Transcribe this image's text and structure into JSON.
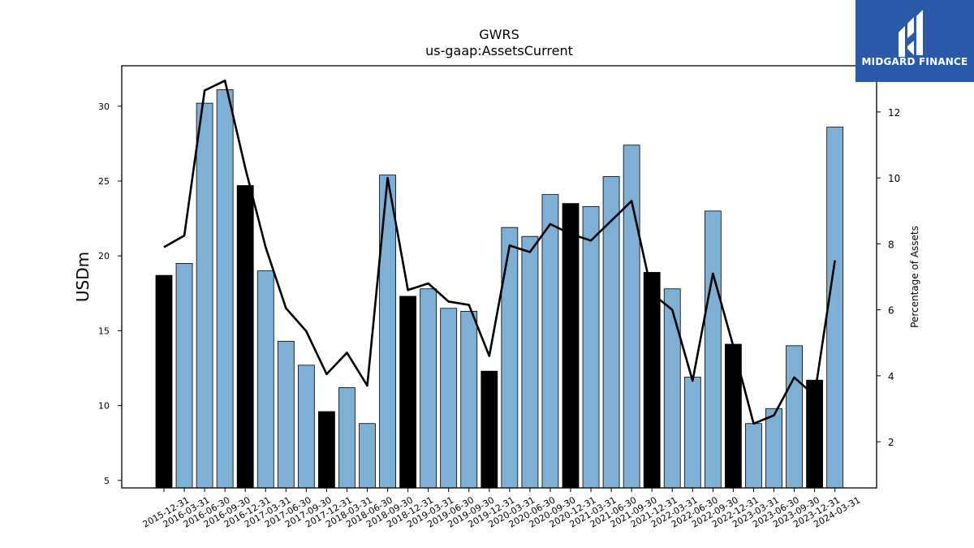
{
  "chart_data": {
    "type": "bar",
    "title": "GWRS",
    "subtitle": "us-gaap:AssetsCurrent",
    "ylabel": "USDm",
    "ylabel_right": "Percentage of Assets",
    "ylim": [
      4.5,
      32.7
    ],
    "ylim_right": [
      0.6,
      13.4
    ],
    "yticks": [
      5,
      10,
      15,
      20,
      25,
      30
    ],
    "yticks_right": [
      2,
      4,
      6,
      8,
      10,
      12
    ],
    "grid": false,
    "categories": [
      "2015-12-31",
      "2016-03-31",
      "2016-06-30",
      "2016-09-30",
      "2016-12-31",
      "2017-03-31",
      "2017-06-30",
      "2017-09-30",
      "2017-12-31",
      "2018-03-31",
      "2018-06-30",
      "2018-09-30",
      "2018-12-31",
      "2019-03-31",
      "2019-06-30",
      "2019-09-30",
      "2019-12-31",
      "2020-03-31",
      "2020-06-30",
      "2020-09-30",
      "2020-12-31",
      "2021-03-31",
      "2021-06-30",
      "2021-09-30",
      "2021-12-31",
      "2022-03-31",
      "2022-06-30",
      "2022-09-30",
      "2022-12-31",
      "2023-03-31",
      "2023-06-30",
      "2023-09-30",
      "2023-12-31",
      "2024-03-31"
    ],
    "series": [
      {
        "type": "bar",
        "axis": "left",
        "values": [
          18.7,
          19.5,
          30.2,
          31.1,
          24.7,
          19.0,
          14.3,
          12.7,
          9.6,
          11.2,
          8.8,
          25.4,
          17.3,
          17.8,
          16.5,
          16.3,
          12.3,
          21.9,
          21.3,
          24.1,
          23.5,
          23.3,
          25.3,
          27.4,
          18.9,
          17.8,
          11.9,
          23.0,
          14.1,
          8.8,
          9.8,
          14.0,
          11.7,
          28.6
        ],
        "colors": [
          "#000000",
          "#7eb0d5",
          "#7eb0d5",
          "#7eb0d5",
          "#000000",
          "#7eb0d5",
          "#7eb0d5",
          "#7eb0d5",
          "#000000",
          "#7eb0d5",
          "#7eb0d5",
          "#7eb0d5",
          "#000000",
          "#7eb0d5",
          "#7eb0d5",
          "#7eb0d5",
          "#000000",
          "#7eb0d5",
          "#7eb0d5",
          "#7eb0d5",
          "#000000",
          "#7eb0d5",
          "#7eb0d5",
          "#7eb0d5",
          "#000000",
          "#7eb0d5",
          "#7eb0d5",
          "#7eb0d5",
          "#000000",
          "#7eb0d5",
          "#7eb0d5",
          "#7eb0d5",
          "#000000",
          "#7eb0d5"
        ]
      },
      {
        "type": "line",
        "axis": "right",
        "color": "#000000",
        "values": [
          7.9,
          8.25,
          12.65,
          12.95,
          10.3,
          7.9,
          6.05,
          5.35,
          4.05,
          4.7,
          3.7,
          10.0,
          6.6,
          6.8,
          6.25,
          6.15,
          4.6,
          7.95,
          7.75,
          8.6,
          8.3,
          8.1,
          8.7,
          9.3,
          6.5,
          6.0,
          3.85,
          7.1,
          4.9,
          2.55,
          2.8,
          3.95,
          3.4,
          7.5
        ]
      }
    ]
  },
  "logo": {
    "text": "MIDGARD FINANCE",
    "bg_color": "#2b5aab"
  }
}
